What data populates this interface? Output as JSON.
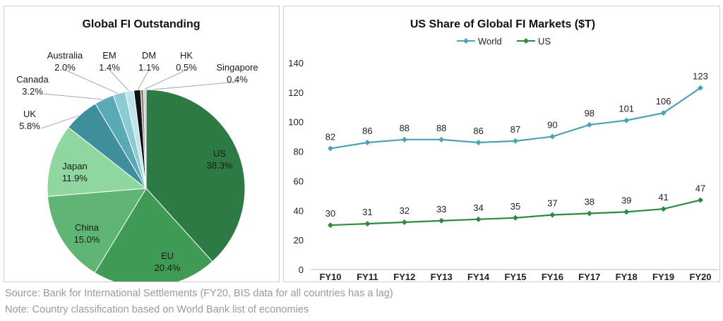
{
  "chart_data": [
    {
      "type": "pie",
      "title": "Global FI Outstanding",
      "slices": [
        {
          "name": "US",
          "value": 38.3,
          "label": "38.3%",
          "color": "#2d7a45"
        },
        {
          "name": "EU",
          "value": 20.4,
          "label": "20.4%",
          "color": "#3f9a55"
        },
        {
          "name": "China",
          "value": 15.0,
          "label": "15.0%",
          "color": "#5fb574"
        },
        {
          "name": "Japan",
          "value": 11.9,
          "label": "11.9%",
          "color": "#8fd6a0"
        },
        {
          "name": "UK",
          "value": 5.8,
          "label": "5.8%",
          "color": "#3e8e9c"
        },
        {
          "name": "Canada",
          "value": 3.2,
          "label": "3.2%",
          "color": "#5aaab6"
        },
        {
          "name": "Australia",
          "value": 2.0,
          "label": "2.0%",
          "color": "#8ccbd3"
        },
        {
          "name": "EM",
          "value": 1.4,
          "label": "1.4%",
          "color": "#bfe4ea"
        },
        {
          "name": "DM",
          "value": 1.1,
          "label": "1.1%",
          "color": "#111111"
        },
        {
          "name": "HK",
          "value": 0.5,
          "label": "0.5%",
          "color": "#8a8a8a"
        },
        {
          "name": "Singapore",
          "value": 0.4,
          "label": "0.4%",
          "color": "#c8c8c8"
        }
      ]
    },
    {
      "type": "line",
      "title": "US Share of Global FI Markets ($T)",
      "categories": [
        "FY10",
        "FY11",
        "FY12",
        "FY13",
        "FY14",
        "FY15",
        "FY16",
        "FY17",
        "FY18",
        "FY19",
        "FY20"
      ],
      "series": [
        {
          "name": "World",
          "color": "#4aa3b5",
          "values": [
            82,
            86,
            88,
            88,
            86,
            87,
            90,
            98,
            101,
            106,
            123
          ]
        },
        {
          "name": "US",
          "color": "#2e8b3e",
          "values": [
            30,
            31,
            32,
            33,
            34,
            35,
            37,
            38,
            39,
            41,
            47
          ]
        }
      ],
      "yticks": [
        0,
        20,
        40,
        60,
        80,
        100,
        120,
        140
      ],
      "ylim": [
        0,
        140
      ],
      "grid": false,
      "legend": "top-center"
    }
  ],
  "notes": {
    "source": "Source: Bank for International Settlements (FY20, BIS data for all countries has a lag)",
    "note": "Note: Country classification based on World Bank list of economies"
  }
}
